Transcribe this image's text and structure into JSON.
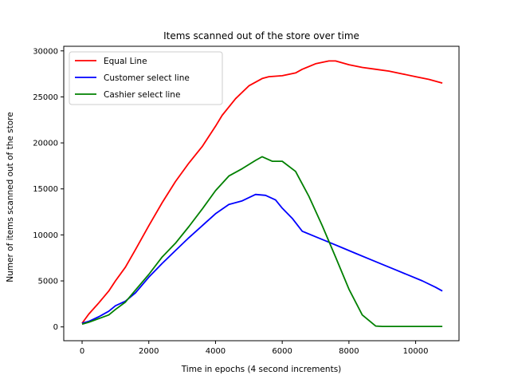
{
  "chart_data": {
    "type": "line",
    "title": "Items scanned out of the store over time",
    "xlabel": "Time in epochs (4 second increments)",
    "ylabel": "Numer of items scanned out of the store",
    "xlim": [
      -550,
      11300
    ],
    "ylim": [
      -1500,
      30500
    ],
    "xticks": [
      0,
      2000,
      4000,
      6000,
      8000,
      10000
    ],
    "yticks": [
      0,
      5000,
      10000,
      15000,
      20000,
      25000,
      30000
    ],
    "grid": false,
    "legend_position": "upper-left",
    "series": [
      {
        "name": "Equal Line",
        "color": "#ff0000",
        "x": [
          0,
          200,
          500,
          800,
          1000,
          1300,
          1600,
          2000,
          2400,
          2800,
          3200,
          3600,
          4000,
          4200,
          4600,
          5000,
          5400,
          5600,
          6000,
          6400,
          6600,
          7000,
          7400,
          7600,
          8000,
          8400,
          8800,
          9200,
          9600,
          10000,
          10400,
          10800
        ],
        "y": [
          400,
          1400,
          2600,
          3900,
          5000,
          6500,
          8400,
          11000,
          13500,
          15800,
          17800,
          19600,
          21800,
          23000,
          24800,
          26200,
          27000,
          27200,
          27300,
          27600,
          28000,
          28600,
          28900,
          28900,
          28500,
          28200,
          28000,
          27800,
          27500,
          27200,
          26900,
          26500
        ]
      },
      {
        "name": "Customer select line",
        "color": "#0000ff",
        "x": [
          0,
          200,
          500,
          800,
          1000,
          1300,
          1600,
          2000,
          2400,
          2800,
          3200,
          3600,
          4000,
          4400,
          4800,
          5200,
          5500,
          5800,
          6000,
          6300,
          6600,
          7000,
          7400,
          7800,
          8200,
          8600,
          9000,
          9400,
          9800,
          10200,
          10600,
          10800
        ],
        "y": [
          400,
          600,
          1100,
          1700,
          2300,
          2800,
          3700,
          5400,
          6900,
          8300,
          9700,
          11000,
          12300,
          13300,
          13700,
          14400,
          14300,
          13800,
          12900,
          11800,
          10400,
          9800,
          9200,
          8600,
          8000,
          7400,
          6800,
          6200,
          5600,
          5000,
          4300,
          3900
        ]
      },
      {
        "name": "Cashier select line",
        "color": "#008000",
        "x": [
          0,
          200,
          500,
          800,
          1000,
          1300,
          1600,
          2000,
          2400,
          2800,
          3200,
          3600,
          4000,
          4400,
          4800,
          5200,
          5400,
          5700,
          6000,
          6400,
          6800,
          7200,
          7600,
          8000,
          8400,
          8800,
          9000,
          9400,
          9800,
          10200,
          10600,
          10800
        ],
        "y": [
          300,
          500,
          900,
          1300,
          1900,
          2700,
          4000,
          5700,
          7600,
          9100,
          10900,
          12800,
          14800,
          16400,
          17200,
          18100,
          18500,
          18000,
          18000,
          16900,
          14200,
          11000,
          7600,
          4100,
          1300,
          100,
          50,
          50,
          50,
          50,
          50,
          50
        ]
      }
    ]
  }
}
